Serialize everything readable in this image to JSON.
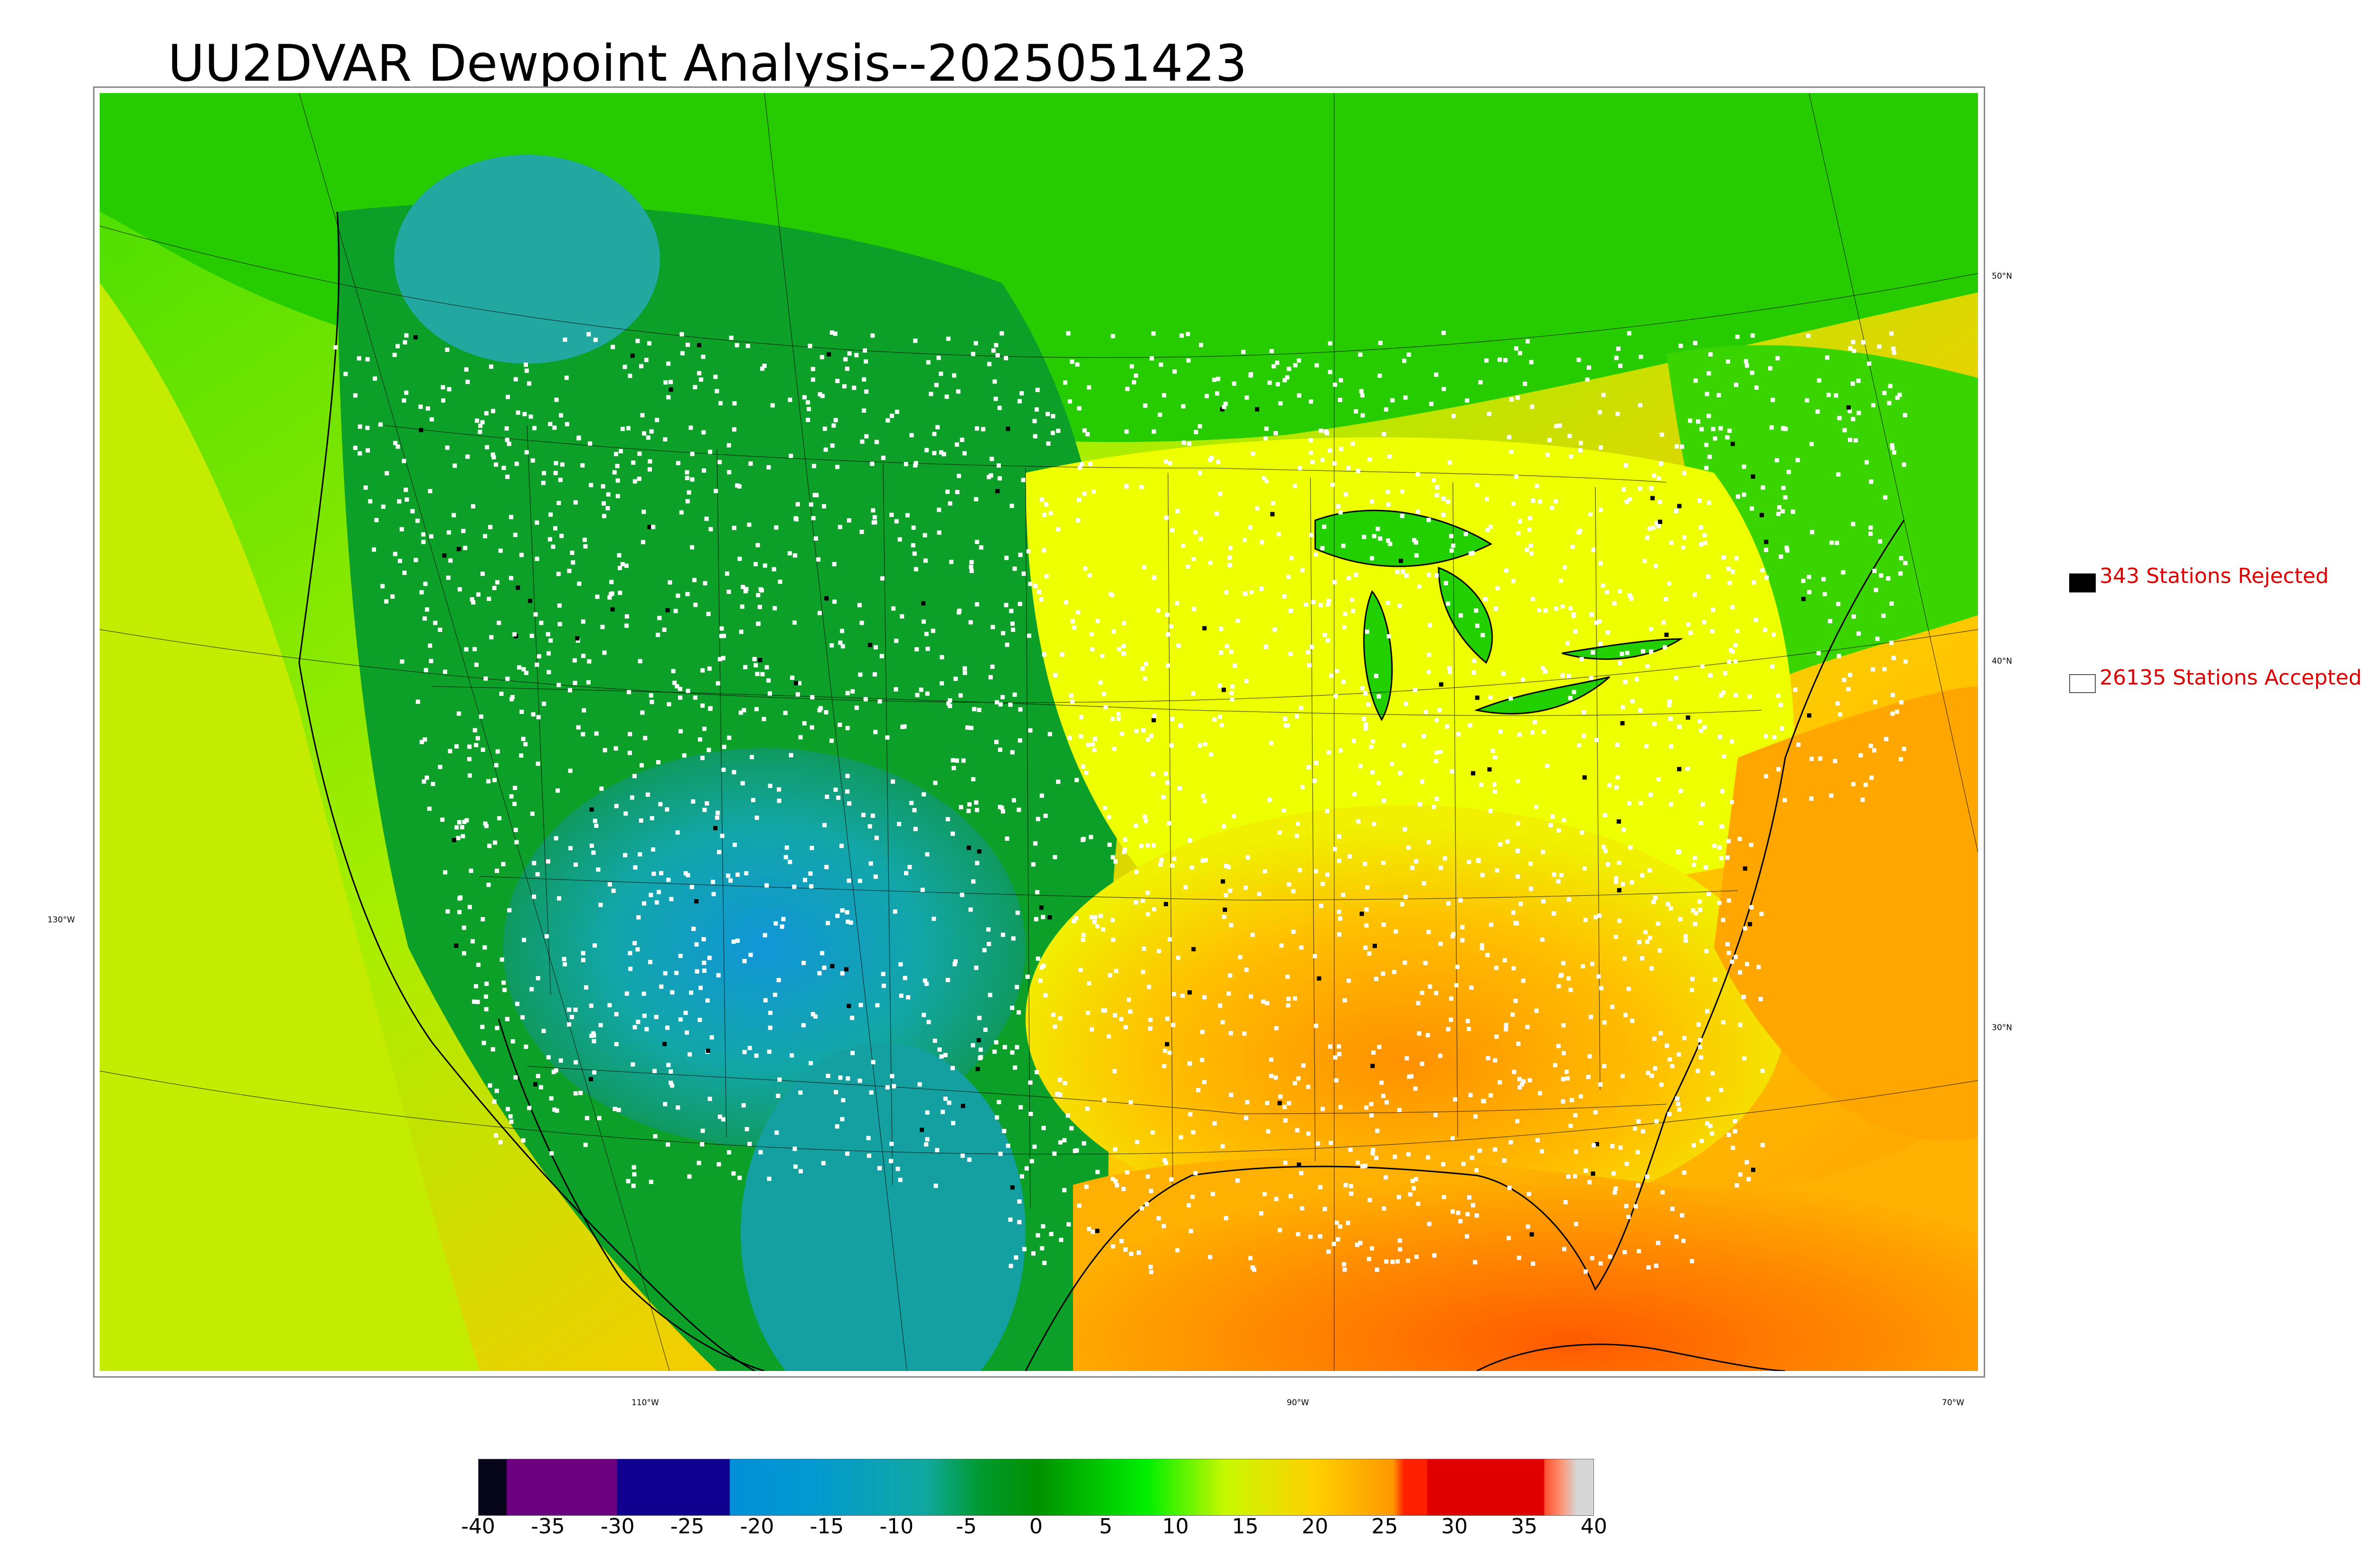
{
  "title": "UU2DVAR Dewpoint Analysis--2025051423",
  "map": {
    "lat_labels": [
      "50°N",
      "40°N",
      "30°N"
    ],
    "lon_labels": [
      "130°W",
      "110°W",
      "90°W",
      "70°W"
    ]
  },
  "legend": {
    "rejected": {
      "count_text": "343 Stations Rejected",
      "marker_color": "#000000"
    },
    "accepted": {
      "count_text": "26135 Stations Accepted",
      "marker_color": "#ffffff"
    }
  },
  "colorbar": {
    "ticks": [
      "-40",
      "-35",
      "-30",
      "-25",
      "-20",
      "-15",
      "-10",
      "-5",
      "0",
      "5",
      "10",
      "15",
      "20",
      "25",
      "30",
      "35",
      "40"
    ],
    "range": [
      -40,
      40
    ],
    "colors": [
      "#06051a",
      "#6a0080",
      "#11008f",
      "#0288d8",
      "#00b0a0",
      "#009020",
      "#00e800",
      "#f5f000",
      "#ffa000",
      "#ff2000",
      "#e00000",
      "#d0d0d0"
    ]
  },
  "colors": {
    "ocean_west": "#b5ee00",
    "ocean_gulf": "#ff7a00",
    "canada": "#22cc00",
    "rockies": "#009a20",
    "desert": "#14a6a0",
    "southeast": "#ffb200",
    "midwest": "#f4ff00"
  }
}
